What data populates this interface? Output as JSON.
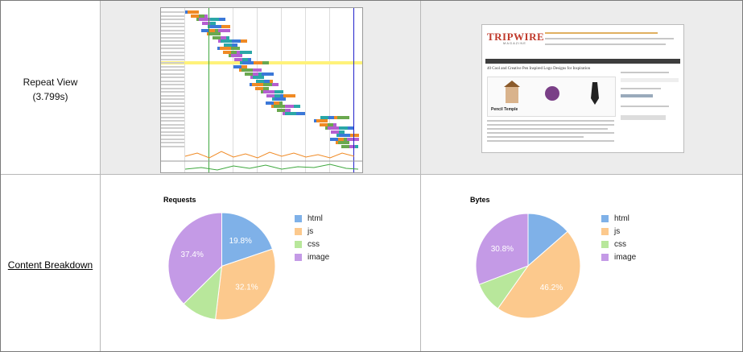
{
  "rows": {
    "repeat_view": {
      "title": "Repeat View",
      "time": "(3.799s)"
    },
    "breakdown": {
      "link_label": "Content Breakdown"
    }
  },
  "thumbnail": {
    "logo": "TRIPWIRE",
    "logo_sub": "MAGAZINE",
    "headline": "40 Cool and Creative Pen Inspired Logo Designs for Inspiration",
    "feature_label": "Pencil Temple"
  },
  "colors": {
    "html": "#7fb1e8",
    "js": "#fcc98d",
    "css": "#b8e79b",
    "image": "#c49ae6"
  },
  "chart_data": [
    {
      "type": "pie",
      "title": "Requests",
      "labels": [
        "html",
        "js",
        "css",
        "image"
      ],
      "values": [
        19.8,
        32.1,
        10.7,
        37.4
      ],
      "data_labels": [
        "19.8%",
        "32.1%",
        "",
        "37.4%"
      ],
      "legend": "right"
    },
    {
      "type": "pie",
      "title": "Bytes",
      "labels": [
        "html",
        "js",
        "css",
        "image"
      ],
      "values": [
        13.6,
        46.2,
        9.4,
        30.8
      ],
      "data_labels": [
        "",
        "46.2%",
        "",
        "30.8%"
      ],
      "legend": "right"
    }
  ]
}
